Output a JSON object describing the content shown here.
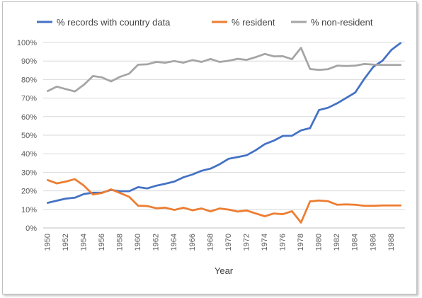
{
  "chart_data": {
    "type": "line",
    "xlabel": "Year",
    "ylabel": "",
    "ylim": [
      0,
      100
    ],
    "y_ticks": [
      "0%",
      "10%",
      "20%",
      "30%",
      "40%",
      "50%",
      "60%",
      "70%",
      "80%",
      "90%",
      "100%"
    ],
    "x": [
      1950,
      1951,
      1952,
      1953,
      1954,
      1955,
      1956,
      1957,
      1958,
      1959,
      1960,
      1961,
      1962,
      1963,
      1964,
      1965,
      1966,
      1967,
      1968,
      1969,
      1970,
      1971,
      1972,
      1973,
      1974,
      1975,
      1976,
      1977,
      1978,
      1979,
      1980,
      1981,
      1982,
      1983,
      1984,
      1985,
      1986,
      1987,
      1988,
      1989
    ],
    "x_tick_labels": [
      "1950",
      "1952",
      "1954",
      "1956",
      "1958",
      "1960",
      "1962",
      "1964",
      "1966",
      "1968",
      "1970",
      "1972",
      "1974",
      "1976",
      "1978",
      "1980",
      "1982",
      "1984",
      "1986",
      "1988"
    ],
    "grid": true,
    "legend_position": "top",
    "series": [
      {
        "name": "% records with country data",
        "color": "#4472c4",
        "values": [
          13.5,
          14.7,
          15.8,
          16.3,
          18.3,
          19.0,
          19.0,
          20.5,
          19.8,
          19.8,
          22.0,
          21.3,
          22.8,
          23.8,
          25.0,
          27.3,
          28.8,
          30.8,
          32.0,
          34.3,
          37.3,
          38.2,
          39.2,
          41.9,
          45.2,
          47.1,
          49.6,
          49.7,
          52.6,
          53.8,
          63.6,
          64.8,
          67.2,
          70.1,
          73.0,
          80.4,
          86.9,
          90.1,
          96.0,
          99.7
        ]
      },
      {
        "name": "% resident",
        "color": "#ed7d31",
        "values": [
          25.8,
          24.0,
          25.0,
          26.3,
          22.8,
          18.0,
          18.8,
          20.8,
          18.8,
          16.8,
          12.0,
          11.8,
          10.6,
          10.9,
          9.7,
          10.9,
          9.5,
          10.5,
          8.9,
          10.5,
          9.9,
          8.8,
          9.4,
          7.8,
          6.3,
          7.8,
          7.4,
          9.0,
          2.9,
          14.3,
          14.8,
          14.4,
          12.5,
          12.7,
          12.5,
          11.9,
          11.9,
          12.1,
          12.1,
          12.1
        ]
      },
      {
        "name": "% non-resident",
        "color": "#a5a5a5",
        "values": [
          73.8,
          76.2,
          74.9,
          73.6,
          77.2,
          81.9,
          81.2,
          79.0,
          81.5,
          83.2,
          88.0,
          88.2,
          89.5,
          89.1,
          90.0,
          89.1,
          90.5,
          89.5,
          91.1,
          89.5,
          90.1,
          91.2,
          90.6,
          92.1,
          93.8,
          92.5,
          92.6,
          91.0,
          97.1,
          85.7,
          85.2,
          85.6,
          87.5,
          87.3,
          87.5,
          88.4,
          88.1,
          87.9,
          87.9,
          87.9
        ]
      }
    ]
  }
}
